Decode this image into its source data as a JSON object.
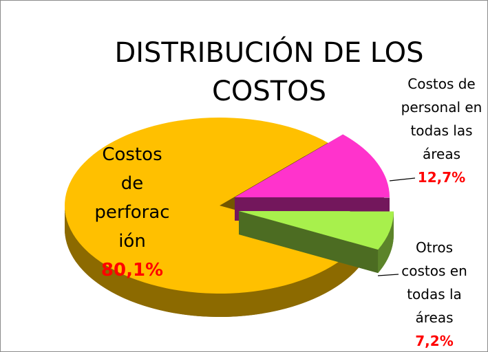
{
  "chart_data": {
    "type": "pie",
    "title": "DISTRIBUCIÓN DE LOS COSTOS",
    "categories": [
      "Costos de perforación",
      "Costos de personal en todas las áreas",
      "Otros costos en todas la áreas"
    ],
    "values": [
      80.1,
      12.7,
      7.2
    ],
    "value_labels": [
      "80,1%",
      "12,7%",
      "7,2%"
    ],
    "colors": [
      "#FFC000",
      "#FF33CC",
      "#A8F04C"
    ]
  }
}
